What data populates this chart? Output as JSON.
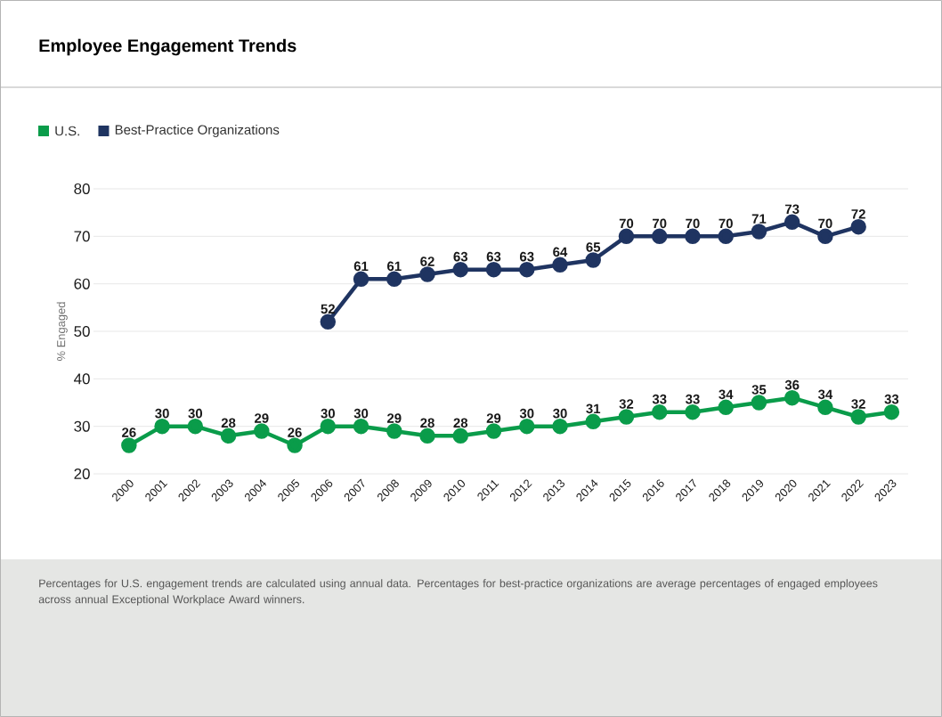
{
  "chart_data": {
    "type": "line",
    "title": "Employee Engagement Trends",
    "ylabel": "% Engaged",
    "categories": [
      "2000",
      "2001",
      "2002",
      "2003",
      "2004",
      "2005",
      "2006",
      "2007",
      "2008",
      "2009",
      "2010",
      "2011",
      "2012",
      "2013",
      "2014",
      "2015",
      "2016",
      "2017",
      "2018",
      "2019",
      "2020",
      "2021",
      "2022",
      "2023"
    ],
    "series": [
      {
        "name": "U.S.",
        "color": "#0a9c4a",
        "values": [
          26,
          30,
          30,
          28,
          29,
          26,
          30,
          30,
          29,
          28,
          28,
          29,
          30,
          30,
          31,
          32,
          33,
          33,
          34,
          35,
          36,
          34,
          32,
          33
        ]
      },
      {
        "name": "Best-Practice Organizations",
        "color": "#1f3461",
        "values": [
          null,
          null,
          null,
          null,
          null,
          null,
          52,
          61,
          61,
          62,
          63,
          63,
          63,
          64,
          65,
          70,
          70,
          70,
          70,
          71,
          73,
          70,
          72,
          null
        ]
      }
    ],
    "ylim": [
      20,
      80
    ],
    "yticks": [
      20,
      30,
      40,
      50,
      60,
      70,
      80
    ],
    "grid": "y",
    "legend": "top left",
    "marker": "circle",
    "line_style": "solid",
    "data_labels": true,
    "annotations": [
      "Percentages for U.S. engagement trends are calculated using annual data. Percentages for best-practice organizations are average percentages of engaged employees across annual Exceptional Workplace Award winners."
    ]
  }
}
